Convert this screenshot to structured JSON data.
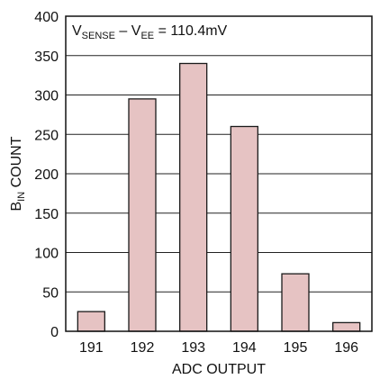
{
  "chart_data": {
    "type": "bar",
    "categories": [
      "191",
      "192",
      "193",
      "194",
      "195",
      "196"
    ],
    "values": [
      25,
      295,
      340,
      260,
      73,
      11
    ],
    "title": "",
    "annotation": {
      "prefix_main": "V",
      "prefix_sub": "SENSE",
      "minus": " – V",
      "suffix_sub": "EE",
      "equation": " = 110.4mV"
    },
    "xlabel": "ADC OUTPUT",
    "ylabel": {
      "main": "B",
      "sub": "IN",
      "rest": " COUNT"
    },
    "ylim": [
      0,
      400
    ],
    "yticks": [
      0,
      50,
      100,
      150,
      200,
      250,
      300,
      350,
      400
    ],
    "grid": true,
    "bar_color": "#e6c3c3",
    "bar_edge_color": "#1a1a1a",
    "grid_color": "#222222"
  }
}
